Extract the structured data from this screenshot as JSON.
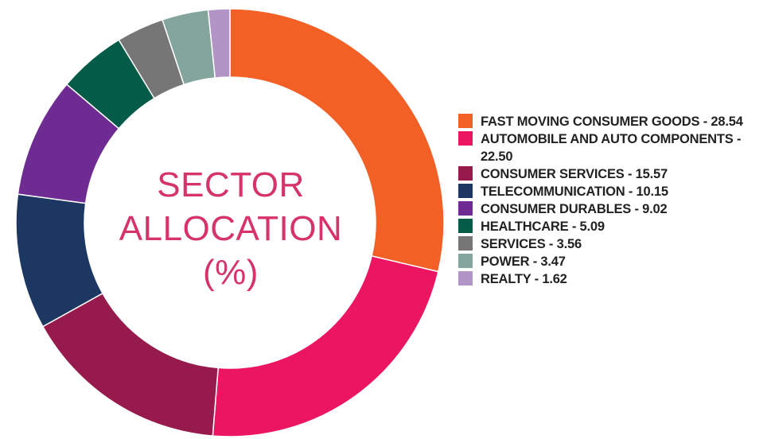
{
  "chart_data": {
    "type": "pie",
    "title": "SECTOR ALLOCATION (%)",
    "title_lines": [
      "SECTOR",
      "ALLOCATION",
      "(%)"
    ],
    "style": "donut",
    "legend_position": "right",
    "categories": [
      "FAST MOVING CONSUMER GOODS",
      "AUTOMOBILE AND AUTO COMPONENTS",
      "CONSUMER SERVICES",
      "TELECOMMUNICATION",
      "CONSUMER DURABLES",
      "HEALTHCARE",
      "SERVICES",
      "POWER",
      "REALTY"
    ],
    "values": [
      28.54,
      22.5,
      15.57,
      10.15,
      9.02,
      5.09,
      3.56,
      3.47,
      1.62
    ],
    "value_labels": [
      "28.54",
      "22.50",
      "15.57",
      "10.15",
      "9.02",
      "5.09",
      "3.56",
      "3.47",
      "1.62"
    ],
    "legend_labels": [
      "FAST MOVING CONSUMER GOODS - 28.54",
      "AUTOMOBILE AND AUTO COMPONENTS - 22.50",
      "CONSUMER SERVICES - 15.57",
      "TELECOMMUNICATION - 10.15",
      "CONSUMER DURABLES - 9.02",
      "HEALTHCARE - 5.09",
      "SERVICES - 3.56",
      "POWER - 3.47",
      "REALTY - 1.62"
    ],
    "colors": [
      "#f26026",
      "#ec1562",
      "#961a4c",
      "#1c3762",
      "#6e2b91",
      "#045b47",
      "#767676",
      "#83a59b",
      "#b295c6"
    ],
    "title_color": "#d6336c"
  }
}
